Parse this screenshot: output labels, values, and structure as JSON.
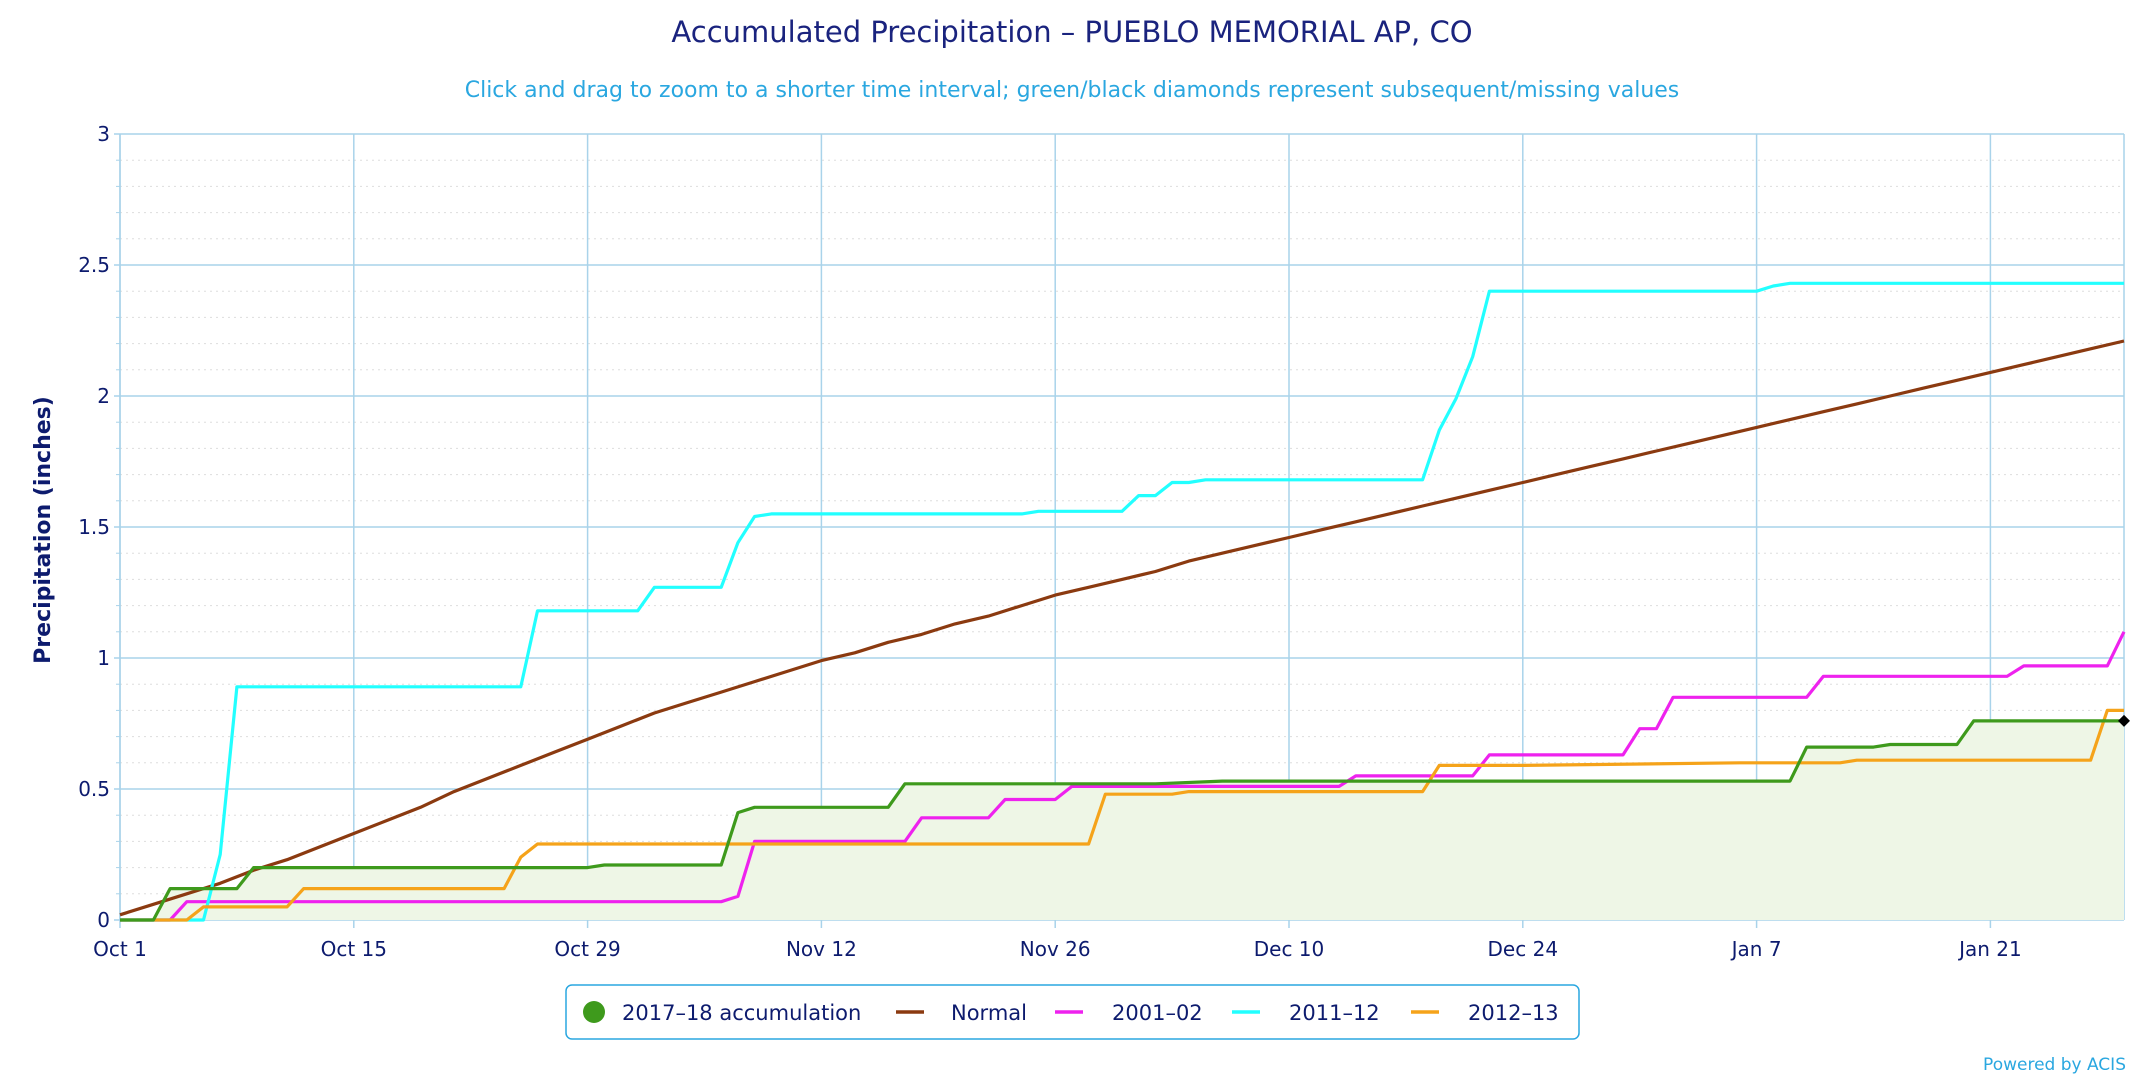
{
  "chart_data": {
    "type": "line",
    "title": "Accumulated Precipitation – PUEBLO MEMORIAL AP, CO",
    "subtitle": "Click and drag to zoom to a shorter time interval; green/black diamonds represent subsequent/missing values",
    "ylabel": "Precipitation (inches)",
    "xlabel": "",
    "ylim": [
      0,
      3
    ],
    "yticks": [
      0,
      0.5,
      1,
      1.5,
      2,
      2.5,
      3
    ],
    "ytick_labels": [
      "0",
      "0.5",
      "1",
      "1.5",
      "2",
      "2.5",
      "3"
    ],
    "xlim": [
      1,
      121
    ],
    "x_unit": "day (Oct 1 = 1)",
    "xticks": [
      1,
      15,
      29,
      43,
      57,
      71,
      85,
      99,
      113
    ],
    "xtick_labels": [
      "Oct 1",
      "Oct 15",
      "Oct 29",
      "Nov 12",
      "Nov 26",
      "Dec 10",
      "Dec 24",
      "Jan 7",
      "Jan 21"
    ],
    "grid": true,
    "legend_position": "bottom-center",
    "credit": "Powered by ACIS",
    "series": [
      {
        "name": "Normal",
        "color": "#8b3a10",
        "points": [
          [
            1,
            0.02
          ],
          [
            3,
            0.06
          ],
          [
            5,
            0.1
          ],
          [
            7,
            0.14
          ],
          [
            9,
            0.19
          ],
          [
            11,
            0.23
          ],
          [
            13,
            0.28
          ],
          [
            15,
            0.33
          ],
          [
            17,
            0.38
          ],
          [
            19,
            0.43
          ],
          [
            21,
            0.49
          ],
          [
            23,
            0.54
          ],
          [
            25,
            0.59
          ],
          [
            27,
            0.64
          ],
          [
            29,
            0.69
          ],
          [
            31,
            0.74
          ],
          [
            33,
            0.79
          ],
          [
            35,
            0.83
          ],
          [
            37,
            0.87
          ],
          [
            39,
            0.91
          ],
          [
            41,
            0.95
          ],
          [
            43,
            0.99
          ],
          [
            45,
            1.02
          ],
          [
            47,
            1.06
          ],
          [
            49,
            1.09
          ],
          [
            51,
            1.13
          ],
          [
            53,
            1.16
          ],
          [
            55,
            1.2
          ],
          [
            57,
            1.24
          ],
          [
            59,
            1.27
          ],
          [
            61,
            1.3
          ],
          [
            63,
            1.33
          ],
          [
            65,
            1.37
          ],
          [
            67,
            1.4
          ],
          [
            69,
            1.43
          ],
          [
            71,
            1.46
          ],
          [
            73,
            1.49
          ],
          [
            75,
            1.52
          ],
          [
            77,
            1.55
          ],
          [
            79,
            1.58
          ],
          [
            81,
            1.61
          ],
          [
            83,
            1.64
          ],
          [
            85,
            1.67
          ],
          [
            87,
            1.7
          ],
          [
            89,
            1.73
          ],
          [
            91,
            1.76
          ],
          [
            93,
            1.79
          ],
          [
            95,
            1.82
          ],
          [
            97,
            1.85
          ],
          [
            99,
            1.88
          ],
          [
            101,
            1.91
          ],
          [
            103,
            1.94
          ],
          [
            105,
            1.97
          ],
          [
            107,
            2.0
          ],
          [
            109,
            2.03
          ],
          [
            111,
            2.06
          ],
          [
            113,
            2.09
          ],
          [
            115,
            2.12
          ],
          [
            117,
            2.15
          ],
          [
            119,
            2.18
          ],
          [
            121,
            2.21
          ]
        ]
      },
      {
        "name": "2001–02",
        "color": "#ee22ee",
        "points": [
          [
            1,
            0
          ],
          [
            4,
            0
          ],
          [
            5,
            0.07
          ],
          [
            37,
            0.07
          ],
          [
            38,
            0.09
          ],
          [
            39,
            0.3
          ],
          [
            48,
            0.3
          ],
          [
            49,
            0.39
          ],
          [
            53,
            0.39
          ],
          [
            54,
            0.46
          ],
          [
            57,
            0.46
          ],
          [
            58,
            0.51
          ],
          [
            74,
            0.51
          ],
          [
            75,
            0.55
          ],
          [
            82,
            0.55
          ],
          [
            83,
            0.63
          ],
          [
            91,
            0.63
          ],
          [
            92,
            0.73
          ],
          [
            93,
            0.73
          ],
          [
            94,
            0.85
          ],
          [
            102,
            0.85
          ],
          [
            103,
            0.93
          ],
          [
            114,
            0.93
          ],
          [
            115,
            0.97
          ],
          [
            120,
            0.97
          ],
          [
            121,
            1.1
          ]
        ]
      },
      {
        "name": "2011–12",
        "color": "#22ffff",
        "points": [
          [
            1,
            0
          ],
          [
            6,
            0
          ],
          [
            7,
            0.25
          ],
          [
            8,
            0.89
          ],
          [
            25,
            0.89
          ],
          [
            26,
            1.18
          ],
          [
            32,
            1.18
          ],
          [
            33,
            1.27
          ],
          [
            37,
            1.27
          ],
          [
            38,
            1.44
          ],
          [
            39,
            1.54
          ],
          [
            40,
            1.55
          ],
          [
            55,
            1.55
          ],
          [
            56,
            1.56
          ],
          [
            61,
            1.56
          ],
          [
            62,
            1.62
          ],
          [
            63,
            1.62
          ],
          [
            64,
            1.67
          ],
          [
            65,
            1.67
          ],
          [
            66,
            1.68
          ],
          [
            79,
            1.68
          ],
          [
            80,
            1.87
          ],
          [
            81,
            1.99
          ],
          [
            82,
            2.15
          ],
          [
            83,
            2.4
          ],
          [
            99,
            2.4
          ],
          [
            100,
            2.42
          ],
          [
            101,
            2.43
          ],
          [
            121,
            2.43
          ]
        ]
      },
      {
        "name": "2012–13",
        "color": "#f5a31a",
        "points": [
          [
            1,
            0
          ],
          [
            5,
            0
          ],
          [
            6,
            0.05
          ],
          [
            11,
            0.05
          ],
          [
            12,
            0.12
          ],
          [
            24,
            0.12
          ],
          [
            25,
            0.24
          ],
          [
            26,
            0.29
          ],
          [
            59,
            0.29
          ],
          [
            60,
            0.48
          ],
          [
            64,
            0.48
          ],
          [
            65,
            0.49
          ],
          [
            79,
            0.49
          ],
          [
            80,
            0.59
          ],
          [
            85,
            0.59
          ],
          [
            98,
            0.6
          ],
          [
            104,
            0.6
          ],
          [
            105,
            0.61
          ],
          [
            119,
            0.61
          ],
          [
            120,
            0.8
          ],
          [
            121,
            0.8
          ]
        ]
      },
      {
        "name": "2017–18 accumulation",
        "color": "#3e9a1c",
        "fill": "#eef6e6",
        "marker": "circle",
        "points": [
          [
            1,
            0
          ],
          [
            3,
            0
          ],
          [
            4,
            0.12
          ],
          [
            8,
            0.12
          ],
          [
            9,
            0.2
          ],
          [
            29,
            0.2
          ],
          [
            30,
            0.21
          ],
          [
            37,
            0.21
          ],
          [
            38,
            0.41
          ],
          [
            39,
            0.43
          ],
          [
            47,
            0.43
          ],
          [
            48,
            0.52
          ],
          [
            62,
            0.52
          ],
          [
            63,
            0.52
          ],
          [
            67,
            0.53
          ],
          [
            101,
            0.53
          ],
          [
            102,
            0.66
          ],
          [
            106,
            0.66
          ],
          [
            107,
            0.67
          ],
          [
            111,
            0.67
          ],
          [
            112,
            0.76
          ],
          [
            121,
            0.76
          ]
        ]
      }
    ],
    "end_marker": {
      "x": 121,
      "y": 0.76,
      "color": "#000000"
    },
    "legend_order": [
      "2017–18 accumulation",
      "Normal",
      "2001–02",
      "2011–12",
      "2012–13"
    ]
  }
}
